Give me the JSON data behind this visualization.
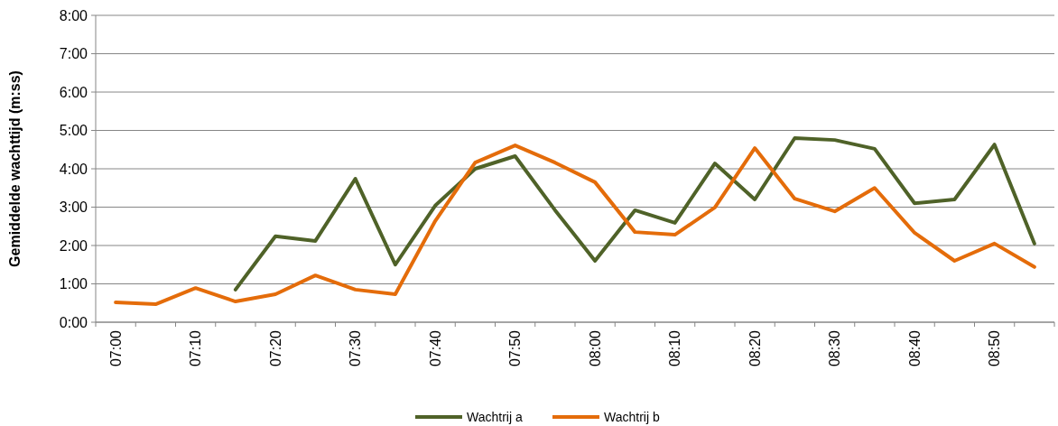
{
  "chart_data": {
    "type": "line",
    "ylabel": "Gemiddelde wachttijd (m:ss)",
    "categories": [
      "07:00",
      null,
      "07:10",
      null,
      "07:20",
      null,
      "07:30",
      null,
      "07:40",
      null,
      "07:50",
      null,
      "08:00",
      null,
      "08:10",
      null,
      "08:20",
      null,
      "08:30",
      null,
      "08:40",
      null,
      "08:50",
      null
    ],
    "series": [
      {
        "name": "Wachtrij a",
        "color": "#4f6228",
        "values": [
          null,
          null,
          null,
          0.85,
          2.24,
          2.12,
          3.74,
          1.5,
          3.04,
          4.0,
          4.33,
          2.92,
          1.6,
          2.92,
          2.59,
          4.14,
          3.2,
          4.8,
          4.75,
          4.52,
          3.1,
          3.2,
          4.63,
          2.05
        ]
      },
      {
        "name": "Wachtrij b",
        "color": "#e46c0a",
        "values": [
          0.52,
          0.47,
          0.89,
          0.54,
          0.73,
          1.22,
          0.85,
          0.73,
          2.64,
          4.16,
          4.61,
          4.16,
          3.65,
          2.35,
          2.28,
          2.99,
          4.54,
          3.22,
          2.89,
          3.5,
          2.33,
          1.6,
          2.05,
          1.44
        ]
      }
    ],
    "ylim": [
      0,
      8
    ],
    "yticks": [
      {
        "value": 0,
        "label": "0:00"
      },
      {
        "value": 1,
        "label": "1:00"
      },
      {
        "value": 2,
        "label": "2:00"
      },
      {
        "value": 3,
        "label": "3:00"
      },
      {
        "value": 4,
        "label": "4:00"
      },
      {
        "value": 5,
        "label": "5:00"
      },
      {
        "value": 6,
        "label": "6:00"
      },
      {
        "value": 7,
        "label": "7:00"
      },
      {
        "value": 8,
        "label": "8:00"
      }
    ],
    "grid": "y",
    "legend": "bottom",
    "marker": "none",
    "line_style": "solid"
  }
}
